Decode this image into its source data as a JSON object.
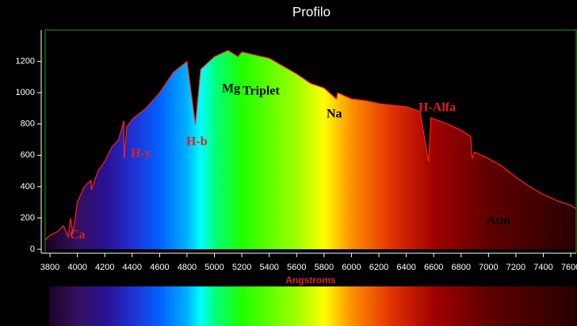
{
  "chart_data": {
    "type": "line",
    "title": "Profilo",
    "x_label": "Angstroms",
    "color": "#ff2020",
    "x": [
      3765,
      3800,
      3850,
      3900,
      3933,
      3950,
      3968,
      4000,
      4050,
      4100,
      4102,
      4150,
      4200,
      4250,
      4300,
      4340,
      4341,
      4360,
      4400,
      4500,
      4600,
      4700,
      4800,
      4861,
      4900,
      5000,
      5100,
      5172,
      5200,
      5300,
      5400,
      5500,
      5600,
      5700,
      5800,
      5890,
      5900,
      6000,
      6100,
      6200,
      6300,
      6400,
      6500,
      6563,
      6580,
      6700,
      6800,
      6870,
      6880,
      6900,
      7000,
      7100,
      7200,
      7300,
      7400,
      7500,
      7600,
      7640
    ],
    "values": [
      60,
      90,
      110,
      150,
      80,
      200,
      100,
      300,
      400,
      440,
      380,
      500,
      560,
      650,
      700,
      820,
      580,
      780,
      830,
      900,
      1000,
      1130,
      1200,
      800,
      1150,
      1230,
      1270,
      1230,
      1260,
      1240,
      1220,
      1170,
      1120,
      1060,
      1030,
      960,
      1000,
      960,
      950,
      930,
      920,
      910,
      880,
      560,
      840,
      800,
      760,
      720,
      580,
      620,
      580,
      530,
      460,
      400,
      350,
      310,
      280,
      260
    ],
    "xlim": [
      3765,
      7640
    ],
    "ylim": [
      -25,
      1400
    ],
    "xticks": [
      3800,
      4000,
      4200,
      4400,
      4600,
      4800,
      5000,
      5200,
      5400,
      5600,
      5800,
      6000,
      6200,
      6400,
      6600,
      6800,
      7000,
      7200,
      7400,
      7600
    ],
    "yticks": [
      0,
      200,
      400,
      600,
      800,
      1000,
      1200
    ],
    "annotations": [
      {
        "text": "Ca",
        "color": "#e02020"
      },
      {
        "text": "H-y",
        "color": "#e02020"
      },
      {
        "text": "H-b",
        "color": "#e02020"
      },
      {
        "text": "Mg",
        "color": "#000000"
      },
      {
        "text": "Triplet",
        "color": "#000000"
      },
      {
        "text": "Na",
        "color": "#000000"
      },
      {
        "text": "H-Alfa",
        "color": "#e02020"
      },
      {
        "text": "Atm",
        "color": "#000000"
      }
    ]
  }
}
